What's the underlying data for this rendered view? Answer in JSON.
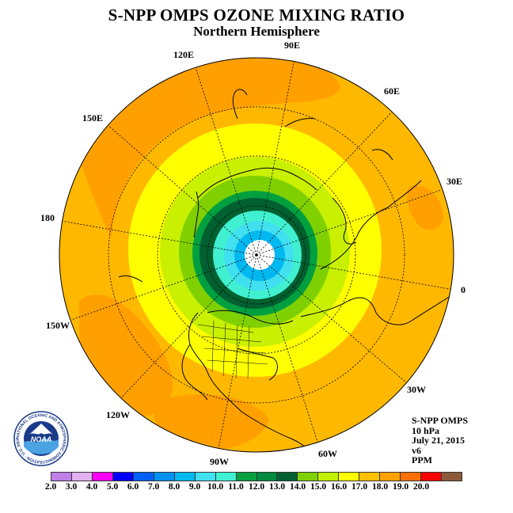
{
  "title": "S-NPP OMPS OZONE MIXING RATIO",
  "subtitle": "Northern Hemisphere",
  "longitude_labels": {
    "lon_0": "0",
    "lon_30e": "30E",
    "lon_60e": "60E",
    "lon_90e": "90E",
    "lon_120e": "120E",
    "lon_150e": "150E",
    "lon_180": "180",
    "lon_150w": "150W",
    "lon_120w": "120W",
    "lon_90w": "90W",
    "lon_60w": "60W",
    "lon_30w": "30W"
  },
  "info": {
    "instrument": "S-NPP OMPS",
    "level": "10 hPa",
    "date": "July 21, 2015",
    "version": "v6",
    "units": "PPM"
  },
  "logo": {
    "text": "NOAA",
    "ring_text": "NATIONAL OCEANIC AND ATMOSPHERIC ADMINISTRATION · U.S. DEPARTMENT OF COMMERCE ·",
    "icon": "noaa-logo-icon"
  },
  "colorbar": {
    "tick_labels": [
      "2.0",
      "3.0",
      "4.0",
      "5.0",
      "6.0",
      "7.0",
      "8.0",
      "9.0",
      "10.0",
      "11.0",
      "12.0",
      "13.0",
      "14.0",
      "15.0",
      "16.0",
      "17.0",
      "18.0",
      "19.0",
      "20.0"
    ],
    "colors": [
      "#c080e8",
      "#e0b0f0",
      "#ff00ff",
      "#0000ff",
      "#0060ff",
      "#0090f0",
      "#00b8f0",
      "#40e0f0",
      "#40f0d0",
      "#00a040",
      "#008a40",
      "#006030",
      "#80d000",
      "#c0f000",
      "#ffff00",
      "#ffc000",
      "#ffa000",
      "#ff7000",
      "#ff0000",
      "#8b5a3c"
    ]
  },
  "map_colors": {
    "outer_band": "#ffb800",
    "high_band": "#ffa000",
    "ring_15": "#ffff00",
    "ring_14": "#c8f000",
    "ring_13": "#80d000",
    "ring_12": "#00a040",
    "ring_11": "#006030",
    "ring_10": "#40f0d0",
    "ring_9": "#40e0f0",
    "ring_8": "#00b8f0",
    "pole_gap": "#ffffff"
  }
}
